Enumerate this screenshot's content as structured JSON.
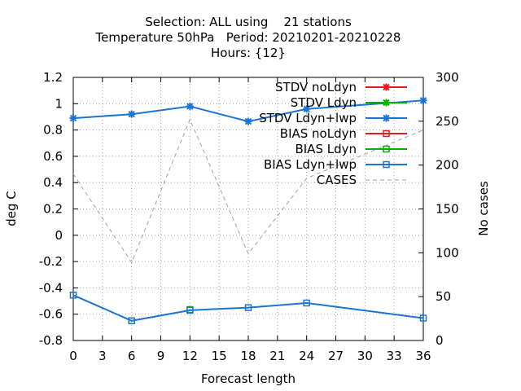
{
  "chart_data": {
    "type": "line",
    "title_lines": [
      "Selection: ALL using    21 stations",
      "Temperature 50hPa   Period: 20210201-20210228",
      "Hours: {12}"
    ],
    "xlabel": "Forecast length",
    "ylabel": "deg C",
    "y2label": "No cases",
    "xlim": [
      0,
      36
    ],
    "xticks": [
      0,
      3,
      6,
      9,
      12,
      15,
      18,
      21,
      24,
      27,
      30,
      33,
      36
    ],
    "ylim": [
      -0.8,
      1.2
    ],
    "yticks": [
      "-0.8",
      "-0.6",
      "-0.4",
      "-0.2",
      "0",
      "0.2",
      "0.4",
      "0.6",
      "0.8",
      "1",
      "1.2"
    ],
    "y2lim": [
      0,
      300
    ],
    "y2ticks": [
      0,
      50,
      100,
      150,
      200,
      250,
      300
    ],
    "grid": true,
    "legend_position": "top-right",
    "series": [
      {
        "name": "STDV noLdyn",
        "axis": "y",
        "marker": "x",
        "dash": false,
        "color": "#e41a1c",
        "x": [],
        "y": []
      },
      {
        "name": "STDV Ldyn",
        "axis": "y",
        "marker": "x",
        "dash": false,
        "color": "#00b000",
        "x": [],
        "y": []
      },
      {
        "name": "STDV Ldyn+lwp",
        "axis": "y",
        "marker": "x",
        "dash": false,
        "color": "#1a75d2",
        "x": [
          0,
          6,
          12,
          18,
          24,
          36
        ],
        "y": [
          0.89,
          0.92,
          0.98,
          0.865,
          0.96,
          1.025
        ]
      },
      {
        "name": "BIAS noLdyn",
        "axis": "y",
        "marker": "square",
        "dash": false,
        "color": "#e41a1c",
        "x": [],
        "y": []
      },
      {
        "name": "BIAS Ldyn",
        "axis": "y",
        "marker": "square",
        "dash": false,
        "color": "#00b000",
        "x": [
          12
        ],
        "y": [
          -0.565
        ]
      },
      {
        "name": "BIAS Ldyn+lwp",
        "axis": "y",
        "marker": "square",
        "dash": false,
        "color": "#1a75d2",
        "x": [
          0,
          6,
          12,
          18,
          24,
          36
        ],
        "y": [
          -0.455,
          -0.65,
          -0.57,
          -0.55,
          -0.515,
          -0.63
        ]
      },
      {
        "name": "CASES",
        "axis": "y2",
        "marker": "none",
        "dash": true,
        "color": "#a0a0a0",
        "x": [
          0,
          6,
          12,
          18,
          24,
          36
        ],
        "y": [
          190,
          89,
          252,
          99,
          185,
          240
        ]
      }
    ]
  }
}
